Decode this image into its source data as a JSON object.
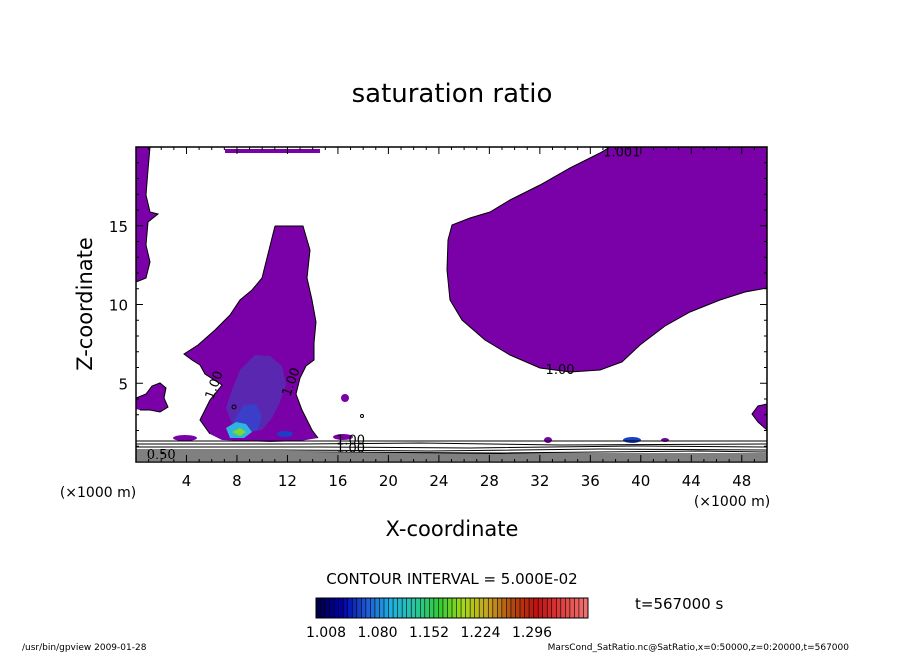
{
  "chart_data": {
    "type": "contour",
    "title": "saturation ratio",
    "xlabel": "X-coordinate",
    "ylabel": "Z-coordinate",
    "x_unit": "(×1000 m)",
    "y_unit": "(×1000 m)",
    "xlim": [
      0,
      50
    ],
    "ylim": [
      0,
      20
    ],
    "x_ticks": [
      4,
      8,
      12,
      16,
      20,
      24,
      28,
      32,
      36,
      40,
      44,
      48
    ],
    "y_ticks": [
      5,
      10,
      15
    ],
    "contour_interval_text": "CONTOUR INTERVAL = 5.000E-02",
    "time_text": "t=567000 s",
    "colorbar": {
      "ticks": [
        "1.008",
        "1.080",
        "1.152",
        "1.224",
        "1.296"
      ],
      "colors": [
        "#00004a",
        "#0000aa",
        "#1f5bd6",
        "#1fb0e0",
        "#29c7a0",
        "#33cc33",
        "#a8d81c",
        "#c8a020",
        "#b04810",
        "#c01010",
        "#e04040",
        "#f07070"
      ]
    },
    "contour_labels": [
      {
        "text": "1.001",
        "x": 38.5,
        "z": 19.4
      },
      {
        "text": "1.00",
        "x": 33.6,
        "z": 5.6
      },
      {
        "text": "1.00",
        "x": 6.5,
        "z": 4.8
      },
      {
        "text": "1.00",
        "x": 12.6,
        "z": 5.0
      },
      {
        "text": "0.50",
        "x": 2.0,
        "z": 0.2
      },
      {
        "text": "1.00",
        "x": 17.0,
        "z": 1.1
      },
      {
        "text": "1.00",
        "x": 17.0,
        "z": 0.6
      }
    ],
    "fill_color": "#7a00a8",
    "footer_left": "/usr/bin/gpview  2009-01-28",
    "footer_right": "MarsCond_SatRatio.nc@SatRatio,x=0:50000,z=0:20000,t=567000"
  }
}
